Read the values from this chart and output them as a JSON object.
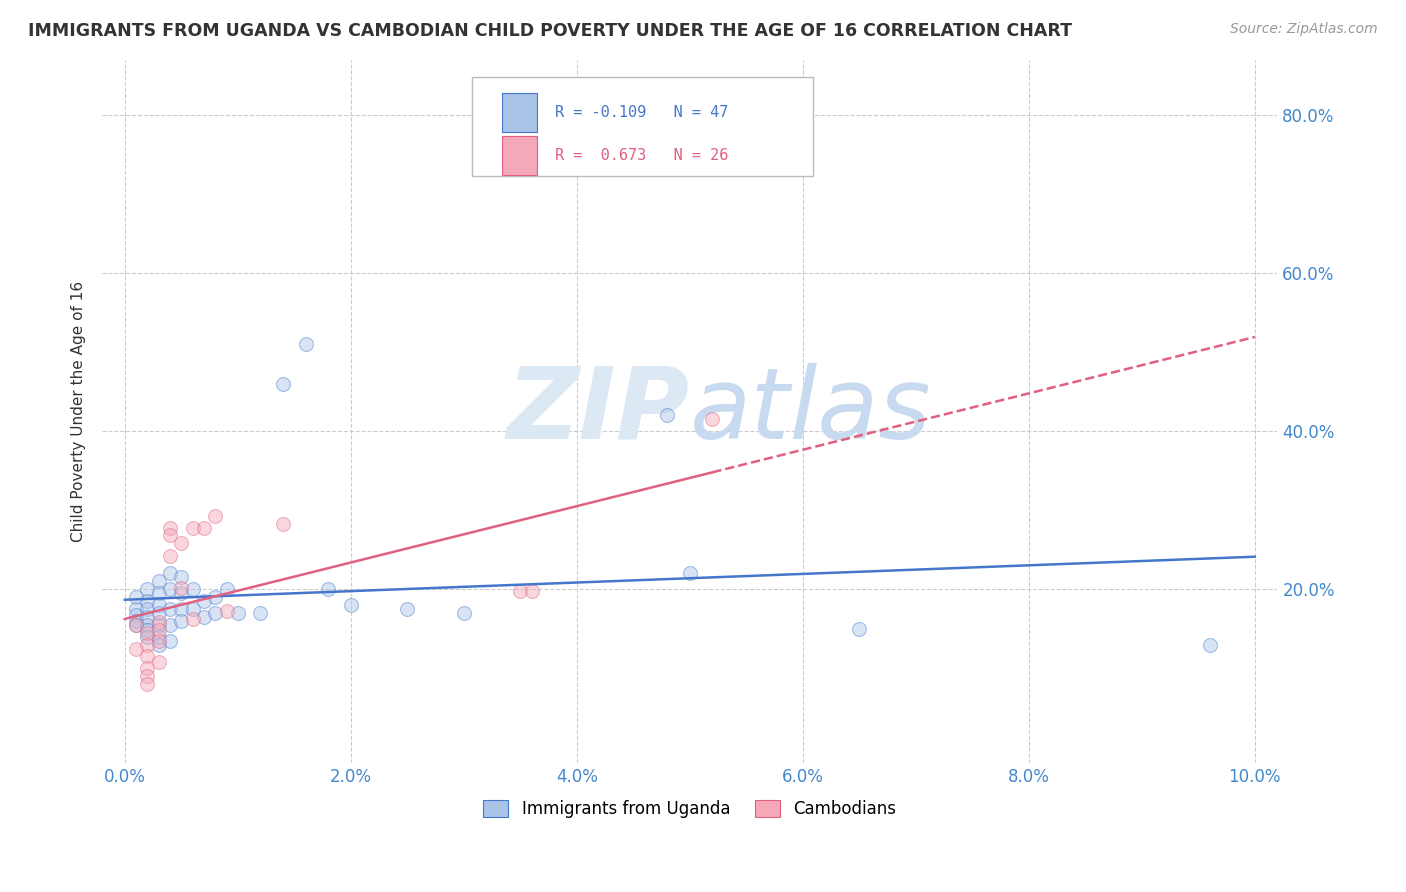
{
  "title": "IMMIGRANTS FROM UGANDA VS CAMBODIAN CHILD POVERTY UNDER THE AGE OF 16 CORRELATION CHART",
  "source": "Source: ZipAtlas.com",
  "ylabel": "Child Poverty Under the Age of 16",
  "xlabel_ticks": [
    "0.0%",
    "2.0%",
    "4.0%",
    "6.0%",
    "8.0%",
    "10.0%"
  ],
  "xlabel_vals": [
    0.0,
    0.02,
    0.04,
    0.06,
    0.08,
    0.1
  ],
  "ylabel_ticks": [
    "80.0%",
    "60.0%",
    "40.0%",
    "20.0%"
  ],
  "ylabel_vals": [
    0.8,
    0.6,
    0.4,
    0.2
  ],
  "xlim": [
    -0.002,
    0.102
  ],
  "ylim": [
    -0.02,
    0.87
  ],
  "uganda_R": -0.109,
  "uganda_N": 47,
  "cambodia_R": 0.673,
  "cambodia_N": 26,
  "uganda_color": "#aac4e8",
  "cambodia_color": "#f5a8b8",
  "uganda_line_color": "#4477cc",
  "cambodia_line_color": "#e06080",
  "uganda_scatter": [
    [
      0.001,
      0.19
    ],
    [
      0.001,
      0.175
    ],
    [
      0.001,
      0.168
    ],
    [
      0.001,
      0.16
    ],
    [
      0.001,
      0.155
    ],
    [
      0.002,
      0.2
    ],
    [
      0.002,
      0.185
    ],
    [
      0.002,
      0.175
    ],
    [
      0.002,
      0.165
    ],
    [
      0.002,
      0.155
    ],
    [
      0.002,
      0.148
    ],
    [
      0.002,
      0.14
    ],
    [
      0.003,
      0.21
    ],
    [
      0.003,
      0.195
    ],
    [
      0.003,
      0.18
    ],
    [
      0.003,
      0.17
    ],
    [
      0.003,
      0.155
    ],
    [
      0.003,
      0.14
    ],
    [
      0.003,
      0.13
    ],
    [
      0.004,
      0.22
    ],
    [
      0.004,
      0.2
    ],
    [
      0.004,
      0.175
    ],
    [
      0.004,
      0.155
    ],
    [
      0.004,
      0.135
    ],
    [
      0.005,
      0.215
    ],
    [
      0.005,
      0.195
    ],
    [
      0.005,
      0.175
    ],
    [
      0.005,
      0.16
    ],
    [
      0.006,
      0.2
    ],
    [
      0.006,
      0.175
    ],
    [
      0.007,
      0.185
    ],
    [
      0.007,
      0.165
    ],
    [
      0.008,
      0.19
    ],
    [
      0.008,
      0.17
    ],
    [
      0.009,
      0.2
    ],
    [
      0.01,
      0.17
    ],
    [
      0.012,
      0.17
    ],
    [
      0.014,
      0.46
    ],
    [
      0.016,
      0.51
    ],
    [
      0.018,
      0.2
    ],
    [
      0.02,
      0.18
    ],
    [
      0.025,
      0.175
    ],
    [
      0.03,
      0.17
    ],
    [
      0.048,
      0.42
    ],
    [
      0.05,
      0.22
    ],
    [
      0.065,
      0.15
    ],
    [
      0.096,
      0.13
    ]
  ],
  "cambodia_scatter": [
    [
      0.001,
      0.155
    ],
    [
      0.001,
      0.125
    ],
    [
      0.002,
      0.145
    ],
    [
      0.002,
      0.13
    ],
    [
      0.002,
      0.115
    ],
    [
      0.002,
      0.1
    ],
    [
      0.002,
      0.09
    ],
    [
      0.002,
      0.08
    ],
    [
      0.003,
      0.158
    ],
    [
      0.003,
      0.148
    ],
    [
      0.003,
      0.135
    ],
    [
      0.003,
      0.108
    ],
    [
      0.004,
      0.278
    ],
    [
      0.004,
      0.268
    ],
    [
      0.004,
      0.242
    ],
    [
      0.005,
      0.258
    ],
    [
      0.005,
      0.202
    ],
    [
      0.006,
      0.278
    ],
    [
      0.006,
      0.162
    ],
    [
      0.007,
      0.278
    ],
    [
      0.008,
      0.292
    ],
    [
      0.009,
      0.172
    ],
    [
      0.014,
      0.282
    ],
    [
      0.035,
      0.198
    ],
    [
      0.036,
      0.198
    ],
    [
      0.052,
      0.415
    ]
  ],
  "background_color": "#ffffff",
  "grid_color": "#cccccc",
  "watermark_color": "#dde8f5",
  "legend_label1": "Immigrants from Uganda",
  "legend_label2": "Cambodians",
  "tick_label_color": "#4488cc",
  "title_color": "#333333",
  "axis_label_color": "#333333",
  "scatter_size": 100,
  "scatter_alpha": 0.45,
  "line_width": 1.8
}
